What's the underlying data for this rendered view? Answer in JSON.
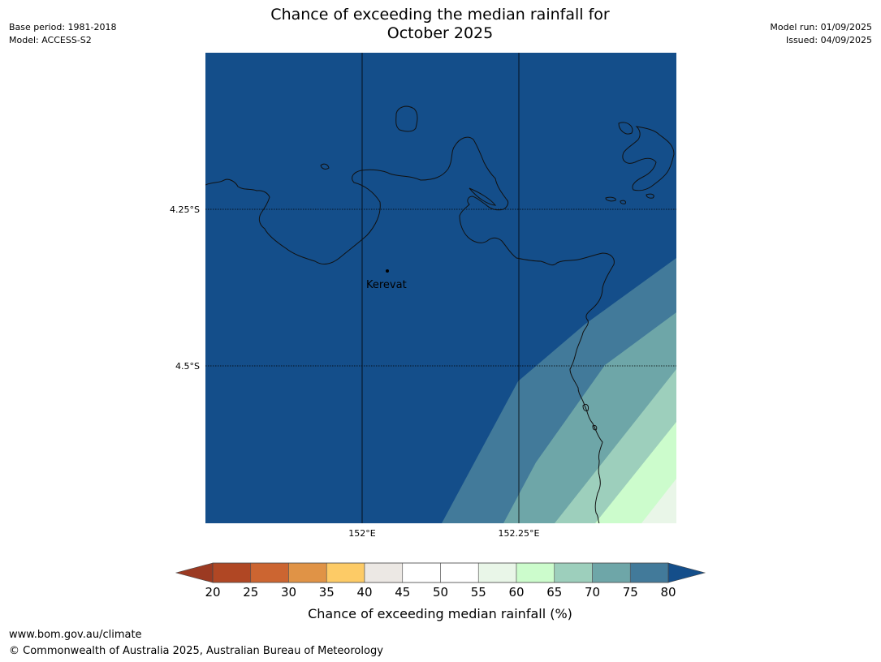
{
  "header": {
    "title_line1": "Chance of exceeding the median rainfall for",
    "title_line2": "October 2025",
    "base_period": "Base period: 1981-2018",
    "model": "Model: ACCESS-S2",
    "model_run": "Model run: 01/09/2025",
    "issued": "Issued: 04/09/2025"
  },
  "map": {
    "place_label": "Kerevat",
    "lat_labels": [
      "4.25°S",
      "4.5°S"
    ],
    "lon_labels": [
      "152°E",
      "152.25°E"
    ]
  },
  "colorbar": {
    "title": "Chance of exceeding median rainfall (%)",
    "ticks": [
      "20",
      "25",
      "30",
      "35",
      "40",
      "45",
      "50",
      "55",
      "60",
      "65",
      "70",
      "75",
      "80"
    ],
    "low_color": "#9b3a22",
    "high_color": "#144e8a",
    "segment_colors": [
      "#b04724",
      "#cc6531",
      "#e09346",
      "#fdcb66",
      "#ece8e4",
      "#ffffff",
      "#ffffff",
      "#e9f6e8",
      "#ccfccc",
      "#9dcfbc",
      "#6ea6a8",
      "#427a9a"
    ]
  },
  "footer": {
    "url": "www.bom.gov.au/climate",
    "copyright": "© Commonwealth of Australia 2025, Australian Bureau of Meteorology"
  },
  "colors": {
    "band_80_plus": "#144e8a",
    "band_75_80": "#427a9a",
    "band_70_75": "#6ea6a8",
    "band_65_70": "#9dcfbc",
    "band_60_65": "#ccfccc",
    "band_55_60": "#e9f6e8"
  }
}
